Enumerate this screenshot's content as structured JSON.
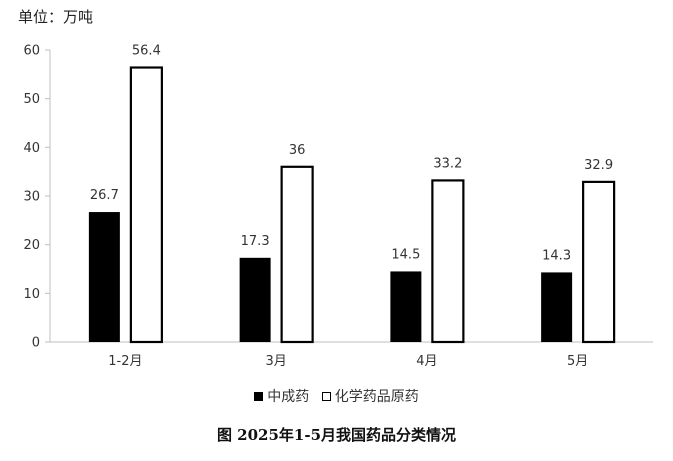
{
  "unit_label": "单位：万吨",
  "caption": "图  2025年1-5月我国药品分类情况",
  "legend": [
    {
      "label": "中成药",
      "style": "filled"
    },
    {
      "label": "化学药品原药",
      "style": "hollow"
    }
  ],
  "colors": {
    "filled": "#000000",
    "hollow_fill": "#ffffff",
    "stroke": "#000000",
    "axis": "#bfbfbf"
  },
  "chart_data": {
    "type": "bar",
    "categories": [
      "1-2月",
      "3月",
      "4月",
      "5月"
    ],
    "series": [
      {
        "name": "中成药",
        "values": [
          26.7,
          17.3,
          14.5,
          14.3
        ]
      },
      {
        "name": "化学药品原药",
        "values": [
          56.4,
          36,
          33.2,
          32.9
        ]
      }
    ],
    "data_labels": [
      [
        "26.7",
        "17.3",
        "14.5",
        "14.3"
      ],
      [
        "56.4",
        "36",
        "33.2",
        "32.9"
      ]
    ],
    "ylabel": "单位：万吨",
    "ylim": [
      0,
      60
    ],
    "yticks": [
      0,
      10,
      20,
      30,
      40,
      50,
      60
    ],
    "grid": false,
    "legend_position": "bottom"
  }
}
